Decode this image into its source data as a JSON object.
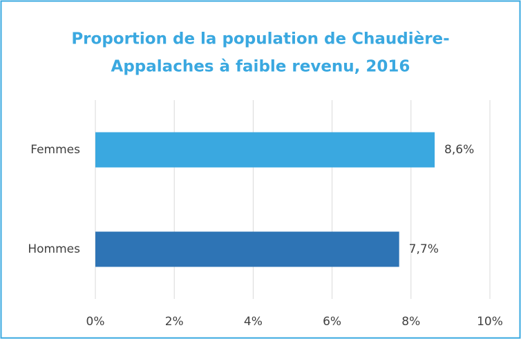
{
  "chart_data": {
    "type": "barh",
    "title": [
      "Proportion de la population de Chaudière-",
      "Appalaches à faible revenu, 2016"
    ],
    "categories": [
      "Femmes",
      "Hommes"
    ],
    "values": [
      8.6,
      7.7
    ],
    "value_labels": [
      "8,6%",
      "7,7%"
    ],
    "colors": [
      "#3aa8e0",
      "#2e74b5"
    ],
    "xlim": [
      0,
      10
    ],
    "xticks": [
      {
        "value": 0,
        "label": "0%"
      },
      {
        "value": 2,
        "label": "2%"
      },
      {
        "value": 4,
        "label": "4%"
      },
      {
        "value": 6,
        "label": "6%"
      },
      {
        "value": 8,
        "label": "8%"
      },
      {
        "value": 10,
        "label": "10%"
      }
    ],
    "grid": true
  }
}
